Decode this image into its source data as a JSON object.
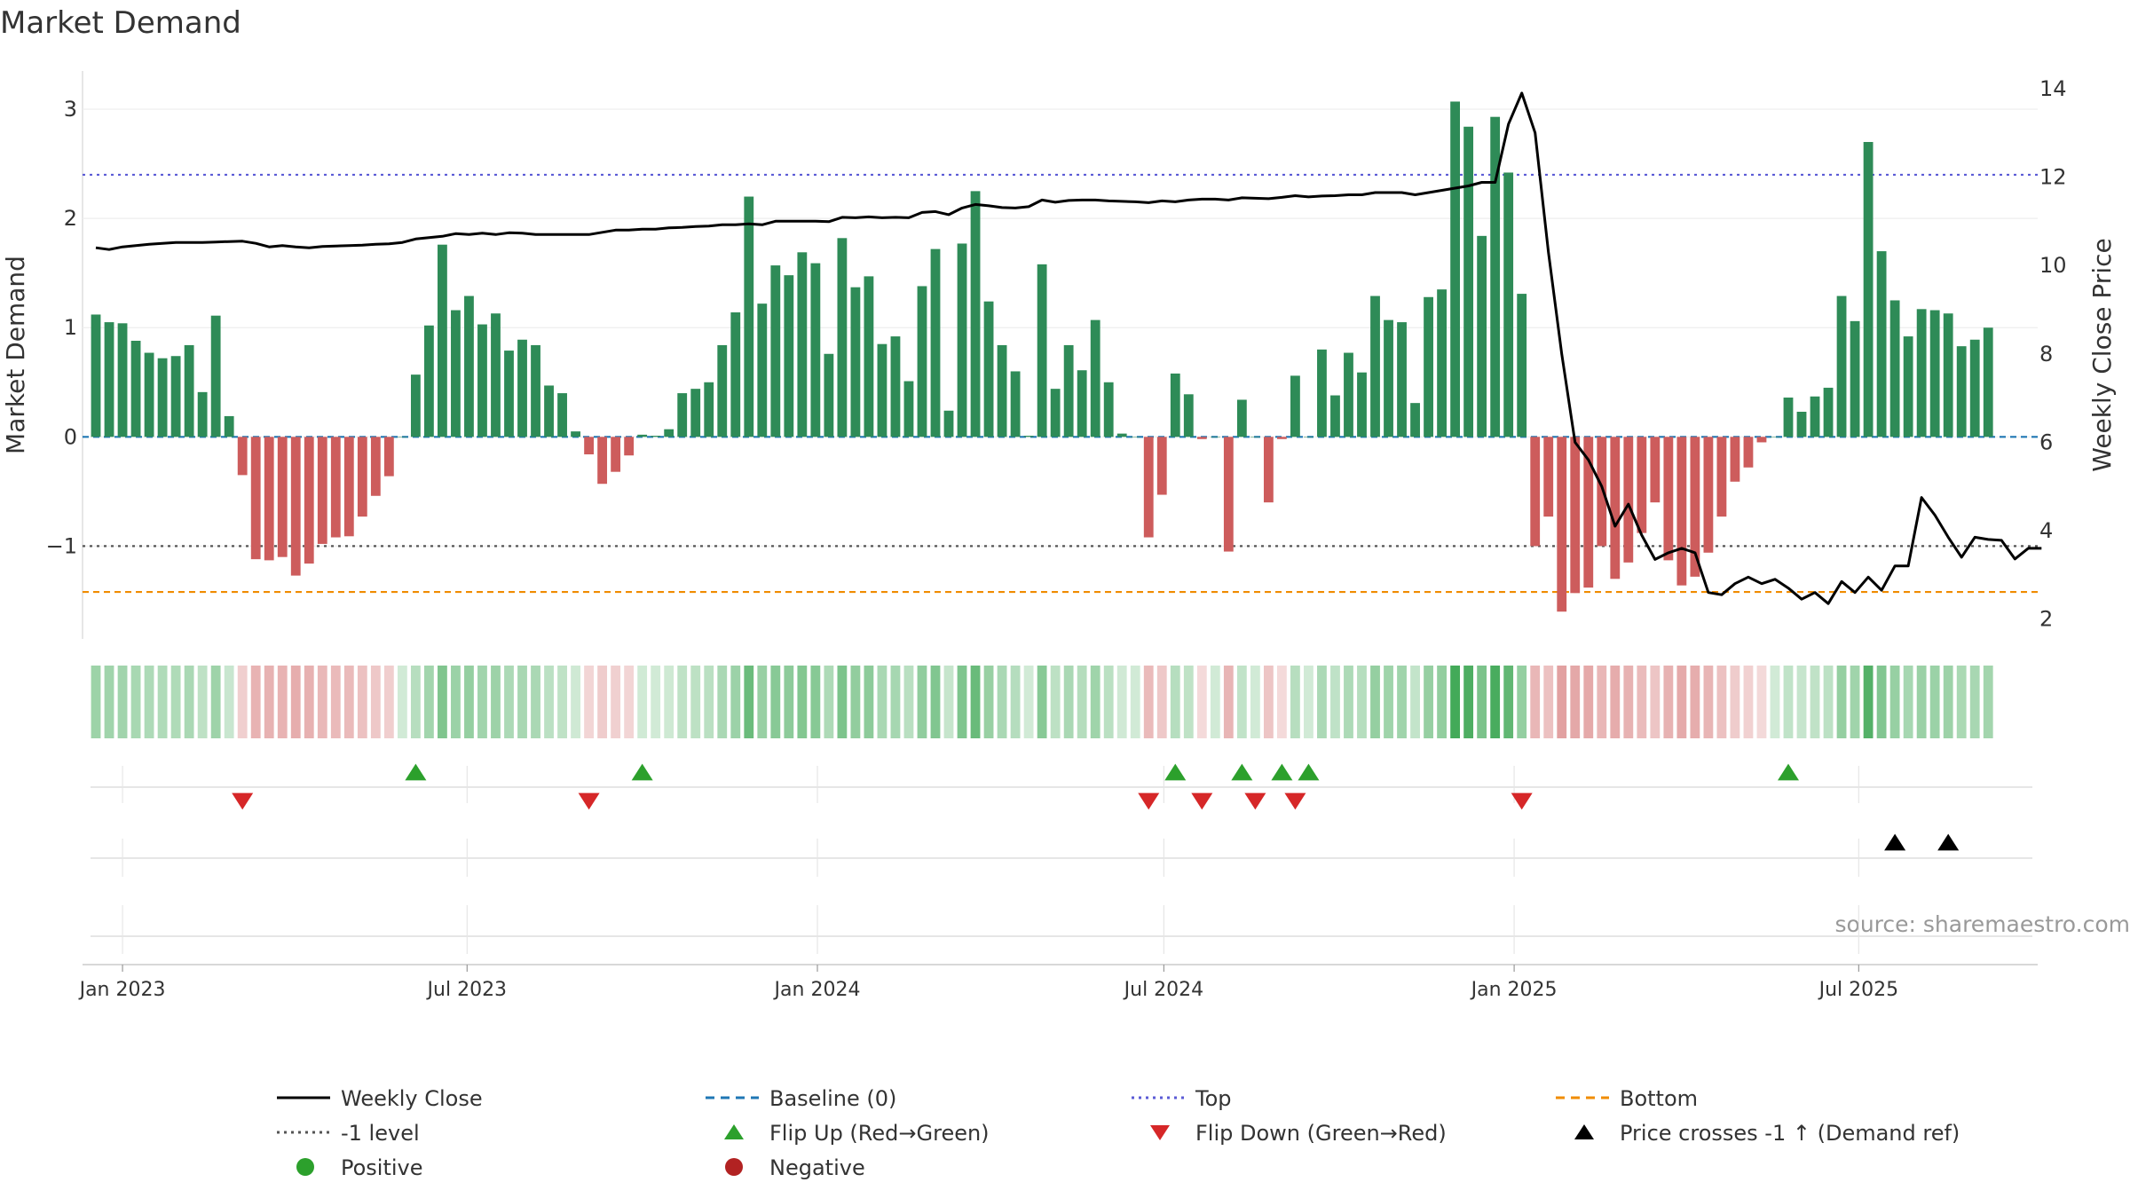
{
  "chart_data": {
    "type": "bar",
    "title": "Market Demand",
    "ylabel": "Market Demand",
    "y2label": "Weekly Close Price",
    "ylim": [
      -1.85,
      3.35
    ],
    "y2lim": [
      1.55,
      14.4
    ],
    "yticks": [
      -1,
      0,
      1,
      2,
      3
    ],
    "y2ticks": [
      2,
      4,
      6,
      8,
      10,
      12,
      14
    ],
    "ytick_labels": [
      "−1",
      "0",
      "1",
      "2",
      "3"
    ],
    "xlim": [
      "2022-12-11",
      "2025-10-03"
    ],
    "xticks": [
      {
        "date": "2023-01-01",
        "label": "Jan 2023"
      },
      {
        "date": "2023-07-01",
        "label": "Jul 2023"
      },
      {
        "date": "2024-01-01",
        "label": "Jan 2024"
      },
      {
        "date": "2024-07-01",
        "label": "Jul 2024"
      },
      {
        "date": "2025-01-01",
        "label": "Jan 2025"
      },
      {
        "date": "2025-07-01",
        "label": "Jul 2025"
      }
    ],
    "reference_lines": [
      {
        "name": "Top",
        "value": 2.4,
        "color": "#5b5bd6",
        "style": "dotted"
      },
      {
        "name": "-1 level",
        "value": -1,
        "color": "#555555",
        "style": "dotted"
      },
      {
        "name": "Bottom",
        "value": -1.42,
        "color": "#f08c00",
        "style": "dashed"
      },
      {
        "name": "Baseline (0)",
        "value": 0,
        "color": "#1f77b4",
        "style": "dashed"
      }
    ],
    "first_week": "2022-12-18",
    "week_step_days": 7,
    "demand": [
      1.12,
      1.05,
      1.04,
      0.88,
      0.77,
      0.72,
      0.74,
      0.84,
      0.41,
      1.11,
      0.19,
      -0.35,
      -1.12,
      -1.13,
      -1.1,
      -1.27,
      -1.16,
      -0.98,
      -0.92,
      -0.91,
      -0.73,
      -0.54,
      -0.36,
      0.0,
      0.57,
      1.02,
      1.76,
      1.16,
      1.29,
      1.03,
      1.13,
      0.79,
      0.89,
      0.84,
      0.47,
      0.4,
      0.05,
      -0.16,
      -0.43,
      -0.32,
      -0.17,
      0.02,
      0.01,
      0.07,
      0.4,
      0.44,
      0.5,
      0.84,
      1.14,
      2.2,
      1.22,
      1.57,
      1.48,
      1.69,
      1.59,
      0.76,
      1.82,
      1.37,
      1.47,
      0.85,
      0.92,
      0.51,
      1.38,
      1.72,
      0.24,
      1.77,
      2.25,
      1.24,
      0.84,
      0.6,
      0.01,
      1.58,
      0.44,
      0.84,
      0.61,
      1.07,
      0.5,
      0.03,
      0.0,
      -0.92,
      -0.53,
      0.58,
      0.39,
      -0.02,
      0.0,
      -1.05,
      0.34,
      0.0,
      -0.6,
      -0.02,
      0.56,
      0.0,
      0.8,
      0.38,
      0.77,
      0.59,
      1.29,
      1.07,
      1.05,
      0.31,
      1.28,
      1.35,
      3.07,
      2.84,
      1.84,
      2.93,
      2.42,
      1.31,
      -1.0,
      -0.73,
      -1.6,
      -1.43,
      -1.38,
      -1.0,
      -1.3,
      -1.15,
      -0.88,
      -0.6,
      -1.13,
      -1.36,
      -1.28,
      -1.06,
      -0.73,
      -0.41,
      -0.28,
      -0.05,
      0.0,
      0.36,
      0.23,
      0.37,
      0.45,
      1.29,
      1.06,
      2.7,
      1.7,
      1.25,
      0.92,
      1.17,
      1.16,
      1.13,
      0.83,
      0.89,
      1.0
    ],
    "price": [
      10.4,
      10.36,
      10.42,
      10.45,
      10.48,
      10.5,
      10.52,
      10.52,
      10.52,
      10.53,
      10.54,
      10.55,
      10.5,
      10.42,
      10.45,
      10.42,
      10.4,
      10.43,
      10.44,
      10.45,
      10.46,
      10.48,
      10.49,
      10.52,
      10.6,
      10.63,
      10.66,
      10.72,
      10.7,
      10.73,
      10.7,
      10.74,
      10.73,
      10.7,
      10.7,
      10.7,
      10.7,
      10.7,
      10.75,
      10.8,
      10.8,
      10.82,
      10.82,
      10.85,
      10.86,
      10.88,
      10.89,
      10.92,
      10.92,
      10.94,
      10.92,
      11.0,
      11.0,
      11.0,
      11.0,
      10.99,
      11.09,
      11.08,
      11.1,
      11.08,
      11.09,
      11.08,
      11.2,
      11.22,
      11.15,
      11.3,
      11.38,
      11.35,
      11.31,
      11.3,
      11.33,
      11.48,
      11.43,
      11.47,
      11.48,
      11.48,
      11.46,
      11.45,
      11.44,
      11.42,
      11.46,
      11.44,
      11.48,
      11.5,
      11.5,
      11.48,
      11.53,
      11.52,
      11.51,
      11.54,
      11.58,
      11.55,
      11.57,
      11.58,
      11.6,
      11.6,
      11.65,
      11.65,
      11.65,
      11.6,
      11.65,
      11.7,
      11.75,
      11.8,
      11.88,
      11.88,
      13.2,
      13.9,
      13.0,
      10.3,
      8.0,
      6.0,
      5.6,
      5.0,
      4.1,
      4.6,
      3.9,
      3.35,
      3.5,
      3.6,
      3.5,
      2.6,
      2.55,
      2.8,
      2.95,
      2.8,
      2.9,
      2.7,
      2.45,
      2.6,
      2.35,
      2.85,
      2.6,
      2.95,
      2.65,
      3.2,
      3.2,
      4.75,
      4.35,
      3.85,
      3.4,
      3.85,
      3.8,
      3.78,
      3.36,
      3.6,
      3.6
    ],
    "flip_up_weeks": [
      24,
      41,
      81,
      86,
      89,
      91,
      127
    ],
    "flip_down_weeks": [
      11,
      37,
      79,
      83,
      87,
      90,
      107
    ],
    "price_cross_weeks": [
      135,
      139
    ],
    "colors": {
      "positive": "#2e8b57",
      "negative": "#cd5c5c",
      "price_line": "#000000",
      "flip_up": "#2ca02c",
      "flip_down": "#d62728",
      "cross": "#000000"
    },
    "legend": [
      {
        "label": "Weekly Close",
        "kind": "line-solid",
        "color": "#000000"
      },
      {
        "label": "Baseline (0)",
        "kind": "line-dashed",
        "color": "#1f77b4"
      },
      {
        "label": "Top",
        "kind": "line-dotted",
        "color": "#5b5bd6"
      },
      {
        "label": "Bottom",
        "kind": "line-dashed",
        "color": "#f08c00"
      },
      {
        "label": "-1 level",
        "kind": "line-dotted",
        "color": "#555555"
      },
      {
        "label": "Flip Up (Red→Green)",
        "kind": "tri-up",
        "color": "#2ca02c"
      },
      {
        "label": "Flip Down (Green→Red)",
        "kind": "tri-down",
        "color": "#d62728"
      },
      {
        "label": "Price crosses -1 ↑ (Demand ref)",
        "kind": "tri-up",
        "color": "#000000"
      },
      {
        "label": "Positive",
        "kind": "dot",
        "color": "#2ca02c"
      },
      {
        "label": "Negative",
        "kind": "dot",
        "color": "#b22222"
      }
    ],
    "source": "source: sharemaestro.com"
  }
}
